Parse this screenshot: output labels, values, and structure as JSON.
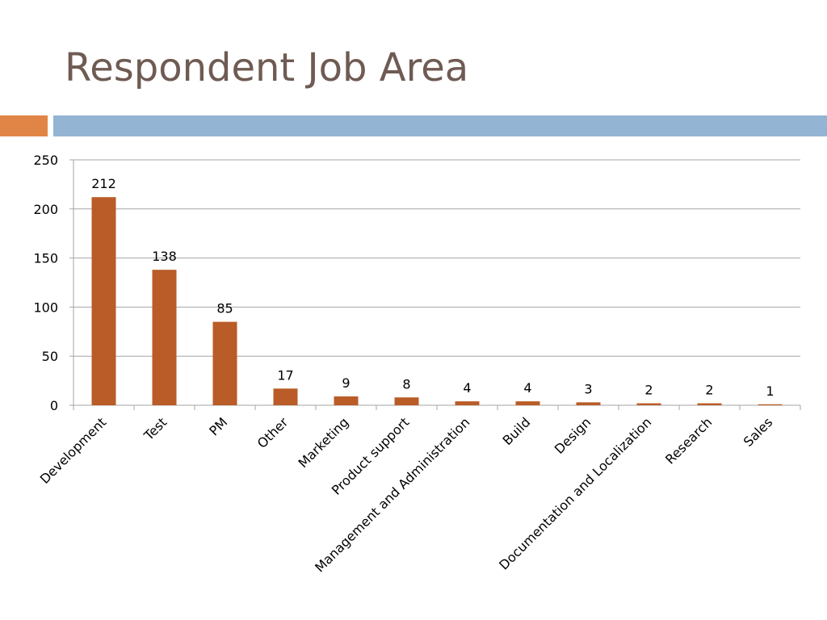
{
  "slide": {
    "title": "Respondent Job Area"
  },
  "colors": {
    "title": "#6f5b53",
    "accent_orange": "#e08545",
    "accent_blue": "#93b4d3",
    "bar": "#b95c27",
    "gridline": "#a6a6a6",
    "text": "#000000"
  },
  "chart_data": {
    "type": "bar",
    "title": "",
    "xlabel": "",
    "ylabel": "",
    "categories": [
      "Development",
      "Test",
      "PM",
      "Other",
      "Marketing",
      "Product support",
      "Management and Administration",
      "Build",
      "Design",
      "Documentation and Localization",
      "Research",
      "Sales"
    ],
    "values": [
      212,
      138,
      85,
      17,
      9,
      8,
      4,
      4,
      3,
      2,
      2,
      1
    ],
    "ylim": [
      0,
      250
    ],
    "yticks": [
      0,
      50,
      100,
      150,
      200,
      250
    ],
    "data_labels": true,
    "grid": true,
    "legend": false
  }
}
